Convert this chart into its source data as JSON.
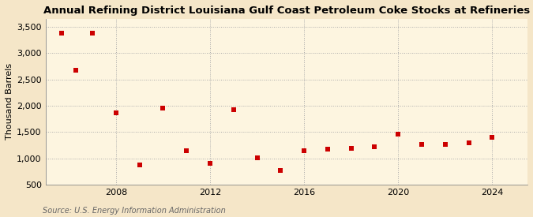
{
  "title": "Annual Refining District Louisiana Gulf Coast Petroleum Coke Stocks at Refineries",
  "ylabel": "Thousand Barrels",
  "source": "Source: U.S. Energy Information Administration",
  "background_color": "#f5e6c8",
  "plot_background_color": "#fdf5e0",
  "grid_color": "#aaaaaa",
  "marker_color": "#cc0000",
  "years": [
    2005.7,
    2006.3,
    2007,
    2008,
    2009,
    2010,
    2011,
    2012,
    2013,
    2014,
    2015,
    2016,
    2017,
    2018,
    2019,
    2020,
    2021,
    2022,
    2023,
    2024
  ],
  "values": [
    3380,
    2680,
    3380,
    1860,
    880,
    1950,
    1150,
    900,
    1920,
    1010,
    770,
    1150,
    1170,
    1190,
    1220,
    1460,
    1260,
    1265,
    1290,
    1400
  ],
  "xlim": [
    2005.0,
    2025.5
  ],
  "ylim": [
    500,
    3650
  ],
  "yticks": [
    500,
    1000,
    1500,
    2000,
    2500,
    3000,
    3500
  ],
  "ytick_labels": [
    "500",
    "1,000",
    "1,500",
    "2,000",
    "2,500",
    "3,000",
    "3,500"
  ],
  "xticks": [
    2008,
    2012,
    2016,
    2020,
    2024
  ],
  "title_fontsize": 9.5,
  "label_fontsize": 8,
  "tick_fontsize": 8,
  "source_fontsize": 7
}
